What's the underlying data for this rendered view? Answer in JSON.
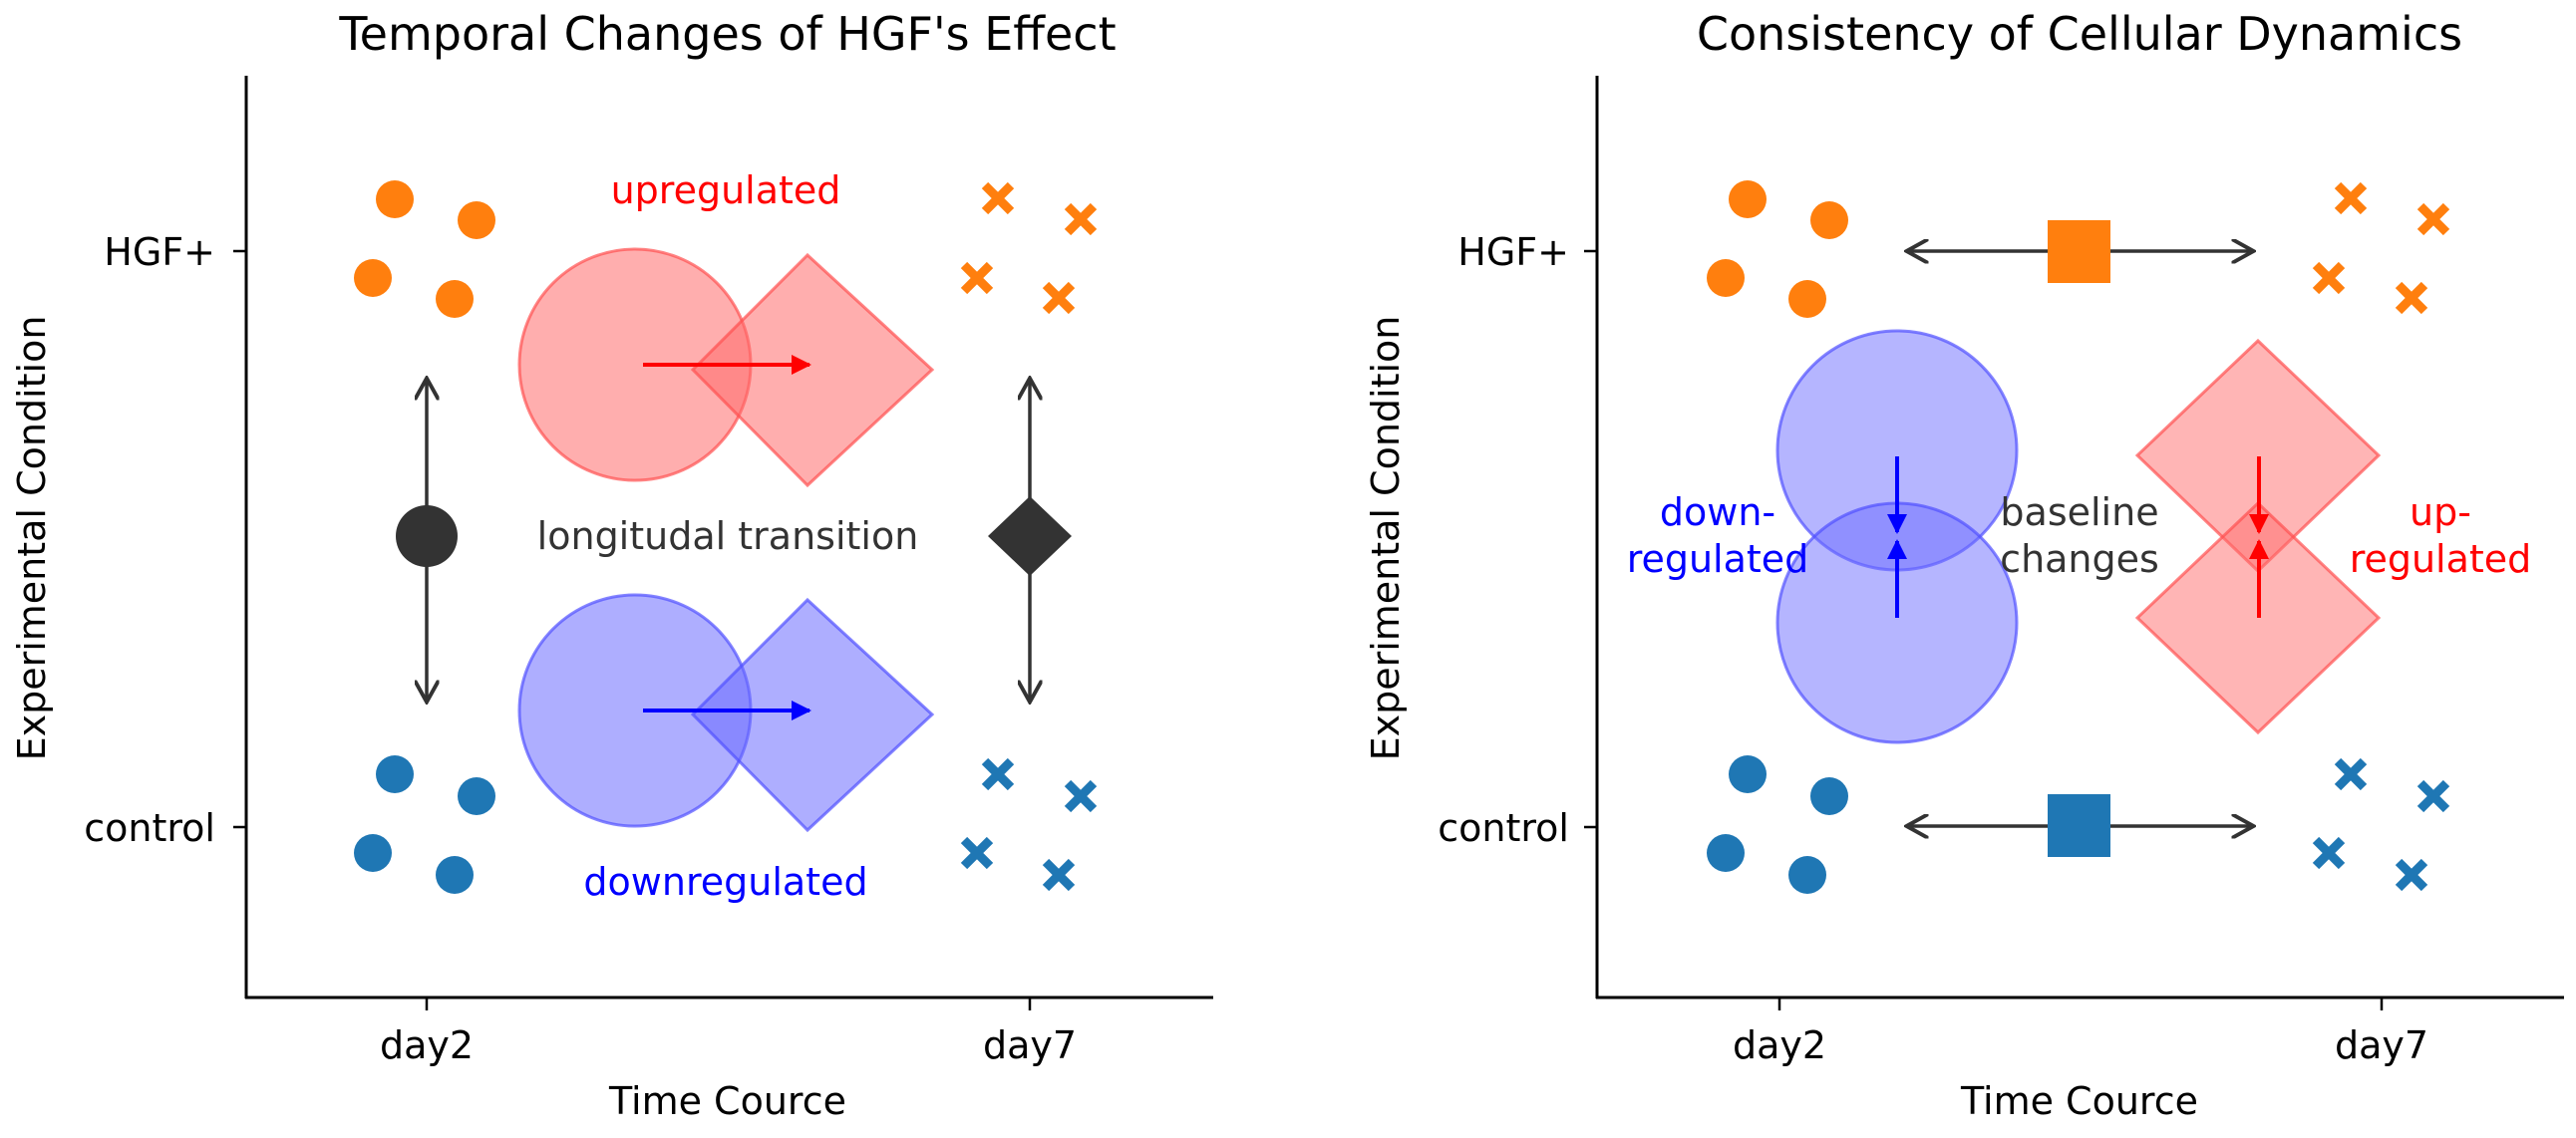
{
  "colors": {
    "orange": "#ff7f0e",
    "blue": "#1f77b4",
    "dark": "#333333",
    "red": "#ff0000",
    "pure_blue": "#0000ff",
    "red_fill": "#ff6b6b",
    "blue_fill": "#6b6bff",
    "red_stroke": "#ff5050",
    "blue_stroke": "#5050ff"
  },
  "left_panel": {
    "title": "Temporal Changes of HGF's Effect",
    "ylabel": "Experimental Condition",
    "xlabel": "Time Cource",
    "yticks": [
      "HGF+",
      "control"
    ],
    "xticks": [
      "day2",
      "day7"
    ],
    "label_up": "upregulated",
    "label_down": "downregulated",
    "label_mid": "longitudal transition"
  },
  "right_panel": {
    "title": "Consistency of Cellular Dynamics",
    "ylabel": "Experimental Condition",
    "xlabel": "Time Cource",
    "yticks": [
      "HGF+",
      "control"
    ],
    "xticks": [
      "day2",
      "day7"
    ],
    "label_down_1": "down-",
    "label_down_2": "regulated",
    "label_base_1": "baseline",
    "label_base_2": "changes",
    "label_up_1": "up-",
    "label_up_2": "regulated"
  }
}
